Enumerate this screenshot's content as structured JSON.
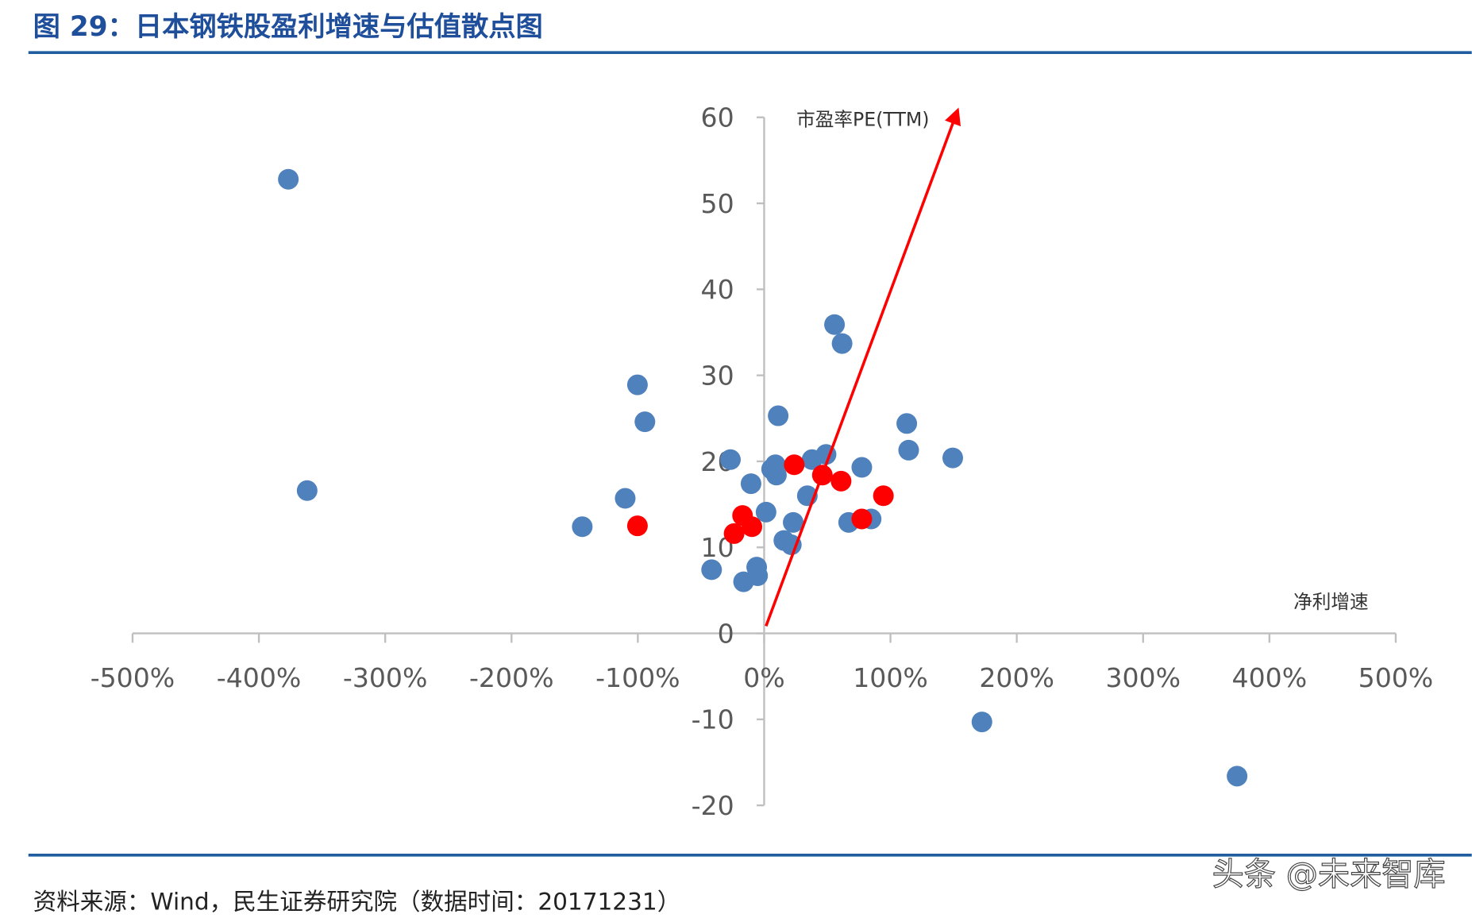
{
  "chart_data": {
    "type": "scatter",
    "title": "图 29：日本钢铁股盈利增速与估值散点图",
    "x_label": "净利增速",
    "y_label": "市盈率PE(TTM)",
    "source": "资料来源：Wind，民生证券研究院（数据时间：20171231）",
    "watermark": "头条 @未来智库",
    "xlim": [
      -500,
      500
    ],
    "ylim": [
      -20,
      60
    ],
    "xticks": [
      {
        "value": -500,
        "label": "-500%"
      },
      {
        "value": -400,
        "label": "-400%"
      },
      {
        "value": -300,
        "label": "-300%"
      },
      {
        "value": -200,
        "label": "-200%"
      },
      {
        "value": -100,
        "label": "-100%"
      },
      {
        "value": 0,
        "label": "0%"
      },
      {
        "value": 100,
        "label": "100%"
      },
      {
        "value": 200,
        "label": "200%"
      },
      {
        "value": 300,
        "label": "300%"
      },
      {
        "value": 400,
        "label": "400%"
      },
      {
        "value": 500,
        "label": "500%"
      }
    ],
    "yticks": [
      -20,
      -10,
      0,
      10,
      20,
      30,
      40,
      50,
      60
    ],
    "series": [
      {
        "color": "#4f81bd",
        "x": [
          -376.7,
          -361.8,
          -144,
          -110,
          -100.3,
          -94.4,
          -41.6,
          -26.7,
          -16.3,
          -10.4,
          -5.9,
          -5.2,
          1.5,
          5.9,
          8.9,
          9.7,
          11.1,
          15.6,
          21.5,
          23,
          34.2,
          37.9,
          49,
          55.7,
          61.7,
          66.9,
          77.3,
          84.7,
          112.9,
          114.4,
          149.3,
          172.4,
          374.4
        ],
        "values": [
          52.8,
          16.6,
          12.4,
          15.7,
          28.9,
          24.6,
          7.4,
          20.2,
          6.0,
          17.4,
          7.7,
          6.7,
          14.1,
          19.1,
          19.6,
          18.4,
          25.3,
          10.8,
          10.3,
          12.9,
          16.0,
          20.2,
          20.8,
          35.9,
          33.7,
          12.9,
          19.3,
          13.3,
          24.4,
          21.3,
          20.4,
          -10.3,
          -16.6
        ]
      },
      {
        "color": "#ff0000",
        "x": [
          -100.3,
          -23.8,
          -17.1,
          -9.7,
          23.8,
          46.1,
          60.9,
          77.3,
          94.4
        ],
        "values": [
          12.5,
          11.6,
          13.7,
          12.4,
          19.6,
          18.4,
          17.7,
          13.3,
          16.0
        ]
      }
    ]
  }
}
